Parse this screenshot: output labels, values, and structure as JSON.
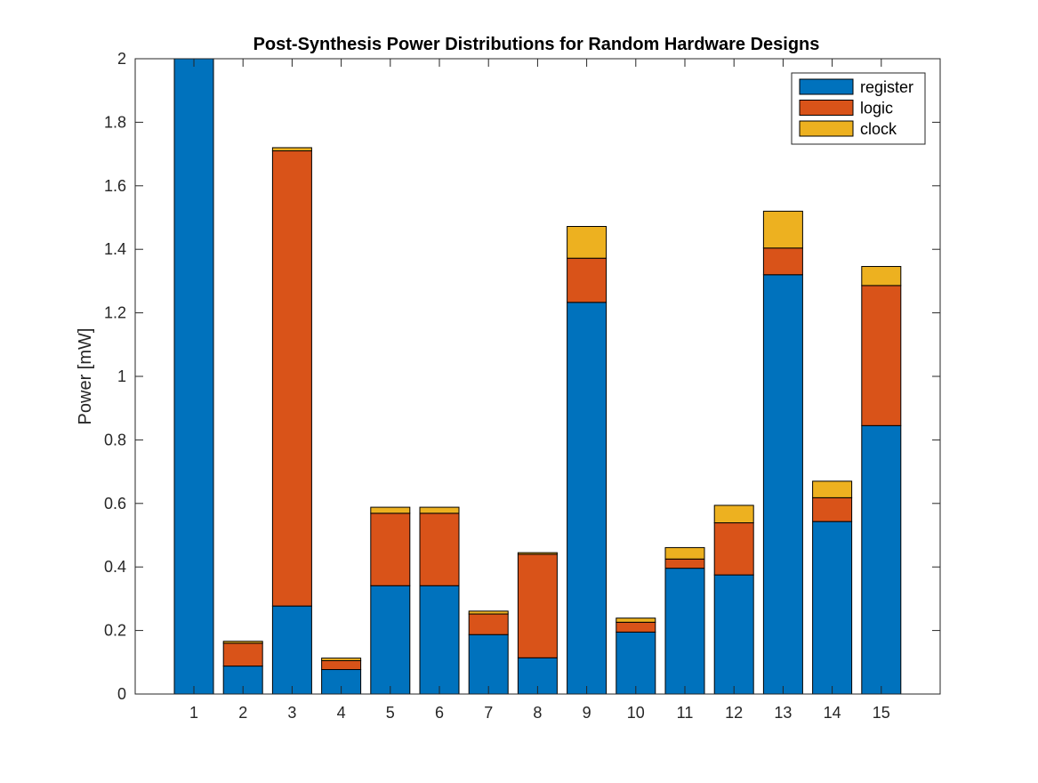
{
  "chart_data": {
    "type": "bar",
    "stacked": true,
    "title": "Post-Synthesis Power Distributions for Random Hardware Designs",
    "xlabel": "",
    "ylabel": "Power [mW]",
    "categories": [
      "1",
      "2",
      "3",
      "4",
      "5",
      "6",
      "7",
      "8",
      "9",
      "10",
      "11",
      "12",
      "13",
      "14",
      "15"
    ],
    "ylim": [
      0,
      2
    ],
    "yticks": [
      "0",
      "0.2",
      "0.4",
      "0.6",
      "0.8",
      "1",
      "1.2",
      "1.4",
      "1.6",
      "1.8",
      "2"
    ],
    "grid": false,
    "legend_position": "top-right",
    "series": [
      {
        "name": "register",
        "color": "#0072BD",
        "values": [
          2.0,
          0.088,
          0.277,
          0.077,
          0.341,
          0.341,
          0.187,
          0.114,
          1.233,
          0.195,
          0.396,
          0.375,
          1.32,
          0.543,
          0.845
        ]
      },
      {
        "name": "logic",
        "color": "#D95319",
        "values": [
          0.0,
          0.072,
          1.433,
          0.028,
          0.228,
          0.228,
          0.065,
          0.326,
          0.139,
          0.031,
          0.029,
          0.164,
          0.084,
          0.075,
          0.441
        ]
      },
      {
        "name": "clock",
        "color": "#EDB120",
        "values": [
          0.0,
          0.006,
          0.01,
          0.008,
          0.019,
          0.019,
          0.009,
          0.005,
          0.1,
          0.013,
          0.036,
          0.055,
          0.116,
          0.052,
          0.06
        ]
      }
    ]
  }
}
